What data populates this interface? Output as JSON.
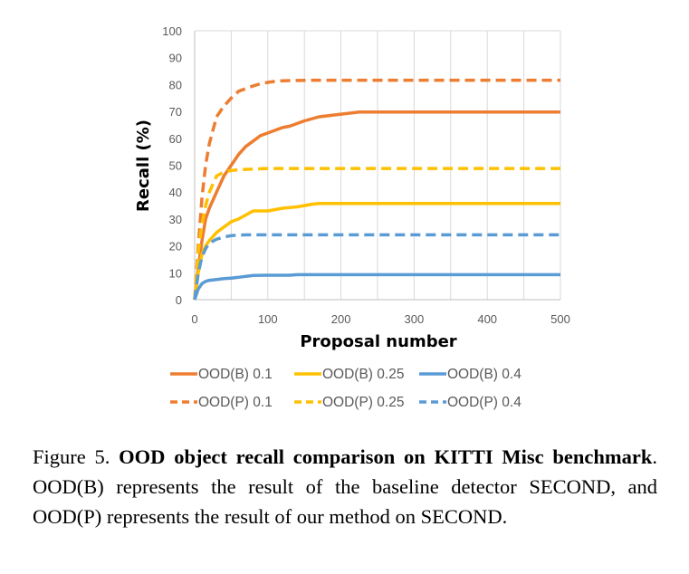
{
  "chart_data": {
    "type": "line",
    "xlabel": "Proposal number",
    "ylabel": "Recall (%)",
    "xlim": [
      0,
      500
    ],
    "ylim": [
      0,
      100
    ],
    "xticks": [
      "0",
      "100",
      "200",
      "300",
      "400",
      "500"
    ],
    "yticks": [
      "0",
      "10",
      "20",
      "30",
      "40",
      "50",
      "60",
      "70",
      "80",
      "90",
      "100"
    ],
    "grid": "vertical",
    "legend_position": "bottom",
    "series": [
      {
        "name": "OOD(B) 0.1",
        "color": "#ED7D31",
        "dash": "solid",
        "x": [
          0,
          5,
          10,
          15,
          20,
          30,
          40,
          50,
          60,
          70,
          80,
          90,
          100,
          110,
          120,
          130,
          150,
          170,
          200,
          225,
          250,
          300,
          400,
          500
        ],
        "y": [
          0,
          12,
          22,
          30,
          34,
          40,
          46,
          50,
          54,
          57,
          59,
          61,
          62,
          63,
          64,
          64.5,
          66.5,
          68,
          69,
          69.8,
          69.8,
          69.8,
          69.8,
          69.8
        ]
      },
      {
        "name": "OOD(B) 0.25",
        "color": "#FFC000",
        "dash": "solid",
        "x": [
          0,
          5,
          10,
          15,
          20,
          30,
          40,
          50,
          60,
          70,
          80,
          90,
          100,
          120,
          140,
          160,
          170,
          200,
          300,
          400,
          500
        ],
        "y": [
          0,
          10,
          17,
          20,
          22,
          25,
          27,
          29,
          30,
          31.5,
          33,
          33,
          33,
          34,
          34.5,
          35.5,
          35.8,
          35.8,
          35.8,
          35.8,
          35.8
        ]
      },
      {
        "name": "OOD(B) 0.4",
        "color": "#5B9BD5",
        "dash": "solid",
        "x": [
          0,
          5,
          10,
          15,
          20,
          30,
          40,
          50,
          60,
          70,
          80,
          100,
          130,
          140,
          200,
          300,
          400,
          500
        ],
        "y": [
          0,
          4,
          6,
          6.8,
          7.2,
          7.5,
          7.8,
          8,
          8.3,
          8.7,
          9,
          9.1,
          9.1,
          9.3,
          9.3,
          9.3,
          9.3,
          9.3
        ]
      },
      {
        "name": "OOD(P) 0.1",
        "color": "#ED7D31",
        "dash": "dashed",
        "x": [
          0,
          5,
          10,
          15,
          20,
          30,
          40,
          50,
          60,
          70,
          80,
          90,
          100,
          110,
          120,
          140,
          160,
          200,
          300,
          400,
          500
        ],
        "y": [
          0,
          20,
          38,
          50,
          58,
          68,
          72,
          75,
          77.5,
          78.5,
          79.5,
          80.3,
          80.8,
          81.2,
          81.4,
          81.5,
          81.6,
          81.6,
          81.6,
          81.6,
          81.6
        ]
      },
      {
        "name": "OOD(P) 0.25",
        "color": "#FFC000",
        "dash": "dashed",
        "x": [
          0,
          5,
          10,
          15,
          20,
          30,
          40,
          50,
          60,
          80,
          100,
          150,
          200,
          300,
          400,
          500
        ],
        "y": [
          0,
          18,
          28,
          35,
          40,
          46,
          47.5,
          48,
          48.3,
          48.6,
          48.8,
          48.8,
          48.8,
          48.8,
          48.8,
          48.8
        ]
      },
      {
        "name": "OOD(P) 0.4",
        "color": "#5B9BD5",
        "dash": "dashed",
        "x": [
          0,
          5,
          10,
          15,
          20,
          30,
          40,
          50,
          60,
          70,
          80,
          100,
          200,
          300,
          400,
          500
        ],
        "y": [
          0,
          10,
          16,
          19,
          21,
          22.5,
          23.3,
          23.8,
          24,
          24.1,
          24.1,
          24.1,
          24.1,
          24.1,
          24.1,
          24.1
        ]
      }
    ]
  },
  "caption": {
    "label": "Figure 5.",
    "title": "OOD object recall comparison on KITTI Misc benchmark",
    "body": ". OOD(B) represents the result of the baseline detector SECOND, and OOD(P) represents the result of our method on SECOND."
  }
}
